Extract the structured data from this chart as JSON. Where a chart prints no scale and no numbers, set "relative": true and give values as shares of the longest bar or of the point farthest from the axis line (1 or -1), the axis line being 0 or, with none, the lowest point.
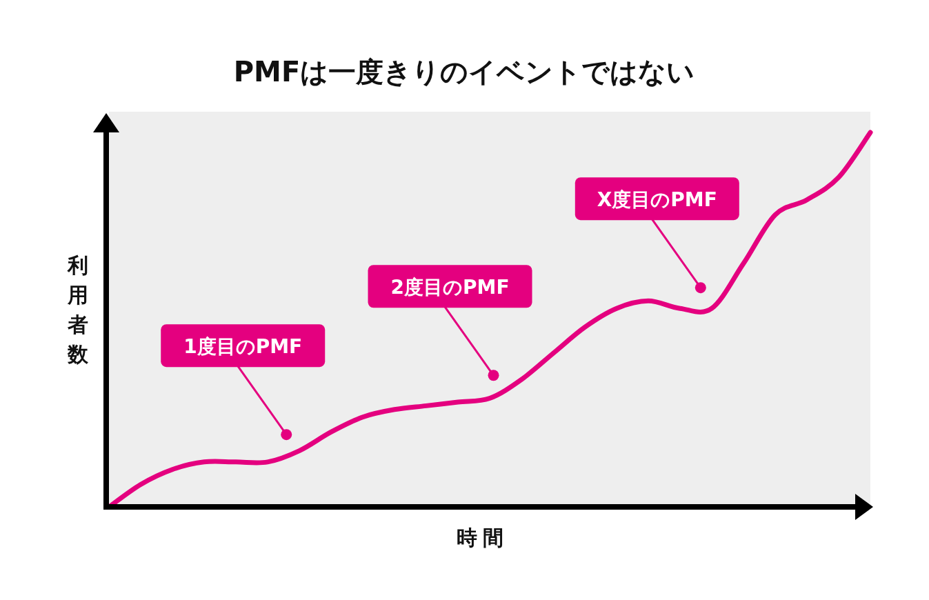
{
  "chart_data": {
    "type": "line",
    "title": "PMFは一度きりのイベントではない",
    "xlabel": "時間",
    "ylabel": "利用者数",
    "relative": true,
    "categories": [
      null,
      null,
      null,
      null,
      null,
      null,
      null,
      null,
      null,
      null,
      null,
      null,
      null,
      null,
      null,
      null,
      null,
      null,
      null,
      null,
      null,
      null,
      null,
      null,
      null
    ],
    "series": [
      {
        "color": "#e4007f",
        "values": [
          0,
          0.06,
          0.1,
          0.12,
          0.12,
          0.12,
          0.15,
          0.2,
          0.24,
          0.26,
          0.27,
          0.28,
          0.29,
          0.34,
          0.41,
          0.48,
          0.53,
          0.55,
          0.53,
          0.53,
          0.65,
          0.78,
          0.82,
          0.88,
          1
        ]
      }
    ],
    "annotations": [
      "1度目のPMF",
      "2度目のPMF",
      "X度目のPMF"
    ]
  }
}
